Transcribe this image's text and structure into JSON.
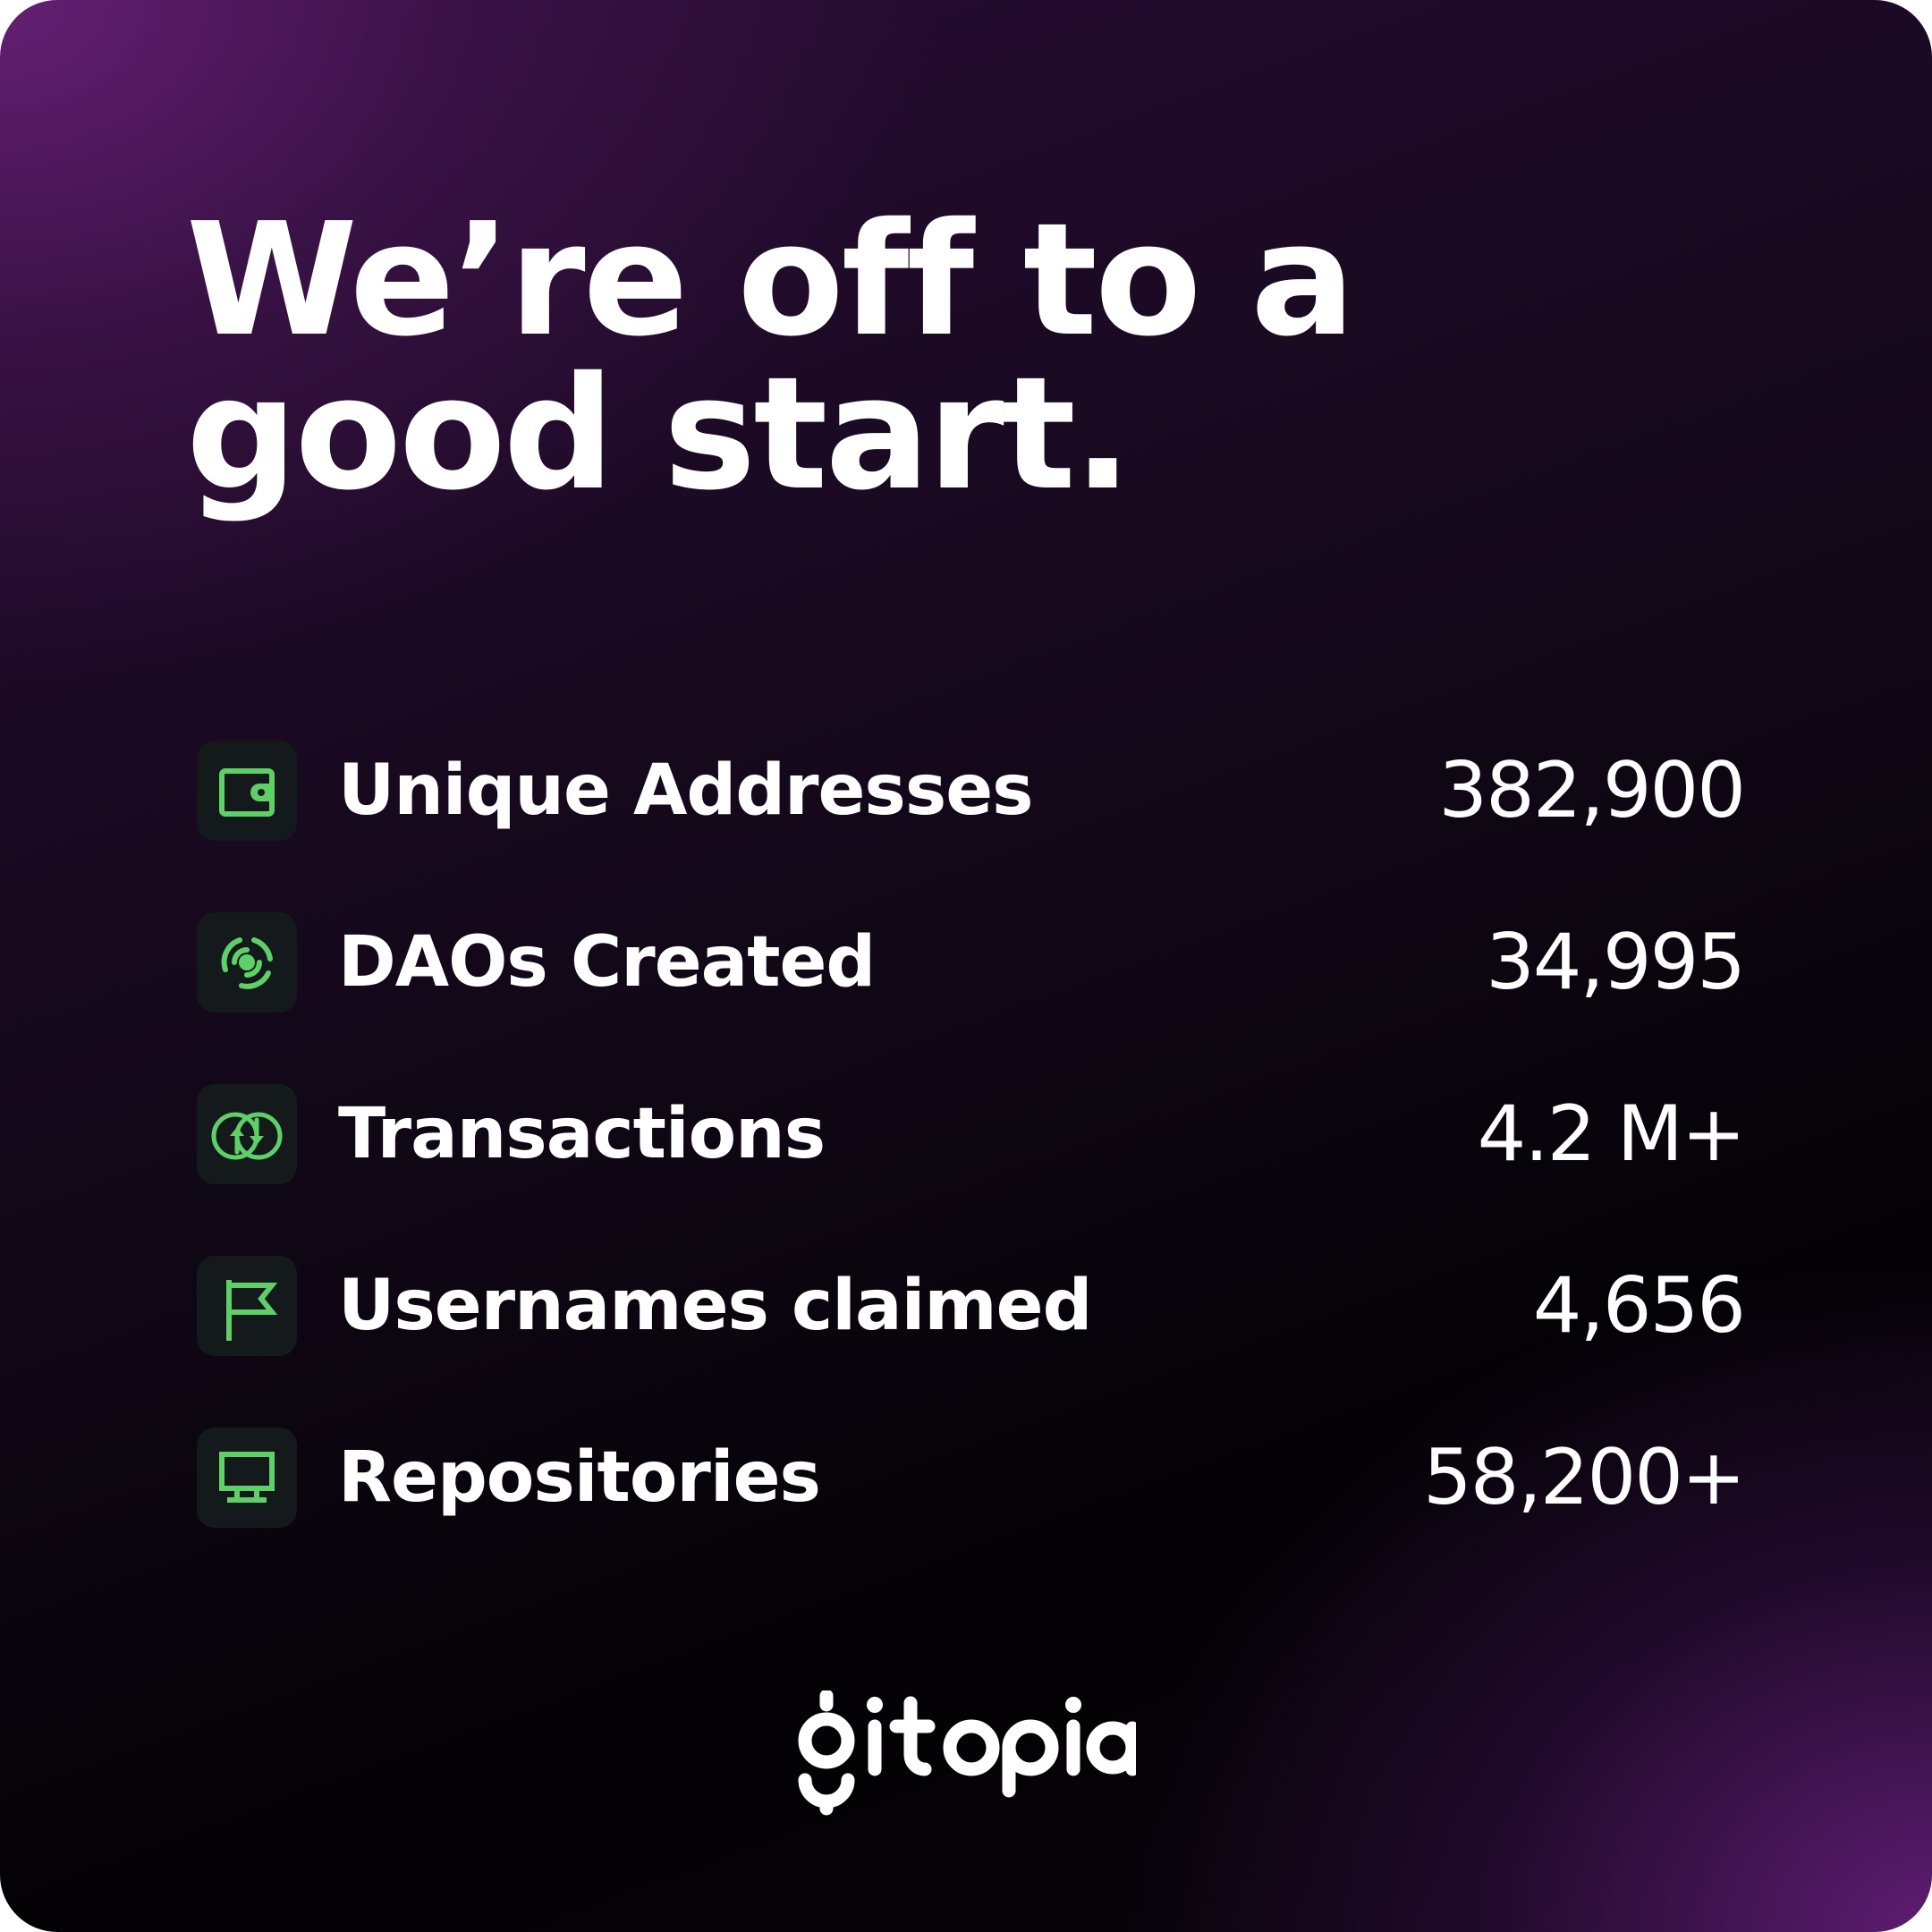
{
  "headline": {
    "line1": "We’re off to a",
    "line2": "good start."
  },
  "stats": [
    {
      "icon": "wallet-icon",
      "label": "Unique Addresses",
      "value": "382,900"
    },
    {
      "icon": "radar-icon",
      "label": "DAOs Created",
      "value": "34,995"
    },
    {
      "icon": "exchange-icon",
      "label": "Transactions",
      "value": "4.2 M+"
    },
    {
      "icon": "flag-icon",
      "label": "Usernames claimed",
      "value": "4,656"
    },
    {
      "icon": "monitor-icon",
      "label": "Repositories",
      "value": "58,200+"
    }
  ],
  "brand": {
    "name": "gitopia"
  },
  "colors": {
    "accent": "#5fd068",
    "icon_background": "#141a1c",
    "text": "#ffffff",
    "gradient_purple": "#5a1a6e",
    "gradient_dark": "#040205"
  }
}
